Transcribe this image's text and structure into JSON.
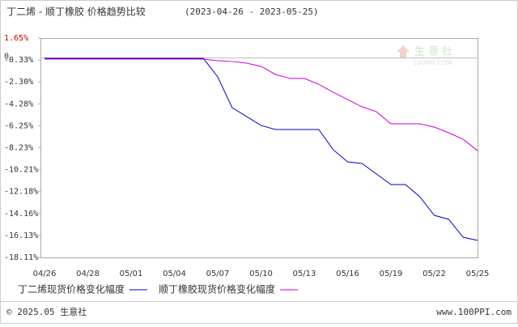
{
  "chart_data": {
    "type": "line",
    "title": "丁二烯 - 顺丁橡胶 价格趋势比较",
    "date_range": "(2023-04-26 - 2023-05-25)",
    "categories": [
      "04/26",
      null,
      null,
      "04/28",
      null,
      null,
      "05/01",
      null,
      null,
      "05/04",
      null,
      null,
      "05/07",
      null,
      null,
      "05/10",
      null,
      null,
      "05/13",
      null,
      null,
      "05/16",
      null,
      null,
      "05/19",
      null,
      null,
      "05/22",
      null,
      null,
      "05/25"
    ],
    "series": [
      {
        "name": "丁二烯现货价格变化幅度",
        "color": "#0000cc",
        "values": [
          -0.17,
          -0.17,
          -0.17,
          -0.17,
          -0.17,
          -0.17,
          -0.17,
          -0.17,
          -0.17,
          -0.17,
          -0.17,
          -0.17,
          -1.85,
          -4.62,
          -5.42,
          -6.22,
          -6.59,
          -6.59,
          -6.59,
          -6.59,
          -8.41,
          -9.51,
          -9.65,
          -10.6,
          -11.55,
          -11.55,
          -12.64,
          -14.32,
          -14.68,
          -16.29,
          -16.58
        ]
      },
      {
        "name": "顺丁橡胶现货价格变化幅度",
        "color": "#cc00cc",
        "values": [
          -0.25,
          -0.25,
          -0.25,
          -0.25,
          -0.25,
          -0.25,
          -0.25,
          -0.25,
          -0.25,
          -0.25,
          -0.25,
          -0.25,
          -0.39,
          -0.46,
          -0.61,
          -0.9,
          -1.63,
          -1.99,
          -1.99,
          -2.51,
          -3.24,
          -3.89,
          -4.55,
          -4.99,
          -6.08,
          -6.08,
          -6.08,
          -6.37,
          -6.88,
          -7.47,
          -8.49
        ]
      }
    ],
    "ylim": [
      -18.11,
      1.65
    ],
    "yticks": [
      {
        "value": 1.65,
        "label": "1.65%"
      },
      {
        "value": -0.33,
        "label": "-0.33%"
      },
      {
        "value": -2.3,
        "label": "-2.30%"
      },
      {
        "value": -4.28,
        "label": "-4.28%"
      },
      {
        "value": -6.25,
        "label": "-6.25%"
      },
      {
        "value": -8.23,
        "label": "-8.23%"
      },
      {
        "value": -10.21,
        "label": "-10.21%"
      },
      {
        "value": -12.18,
        "label": "-12.18%"
      },
      {
        "value": -14.16,
        "label": "-14.16%"
      },
      {
        "value": -16.13,
        "label": "-16.13%"
      },
      {
        "value": -18.11,
        "label": "-18.11%"
      }
    ],
    "baseline": {
      "value": 0,
      "label": "0"
    },
    "watermark": {
      "name": "生 意 社",
      "site": "100PPI.COM"
    },
    "footer": {
      "copyright": "© 2025.05 生意社",
      "url": "www.100PPI.com"
    }
  }
}
